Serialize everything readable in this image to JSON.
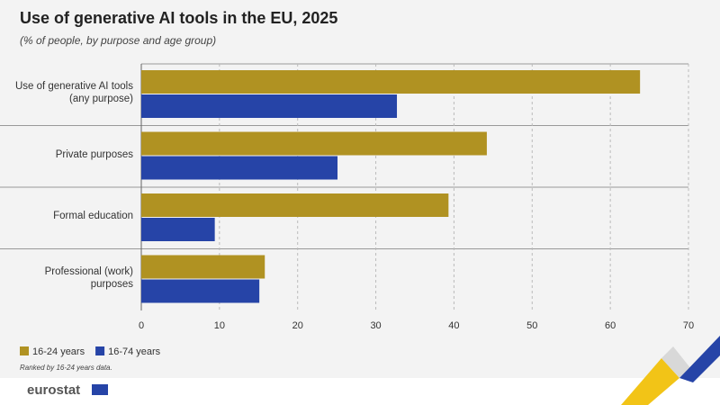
{
  "chart_data": {
    "type": "hbar",
    "title": "Use of generative AI tools in the EU, 2025",
    "subtitle": "(% of people, by purpose and age group)",
    "categories": [
      "Use of generative AI tools\n(any purpose)",
      "Private purposes",
      "Formal education",
      "Professional (work) purposes"
    ],
    "series": [
      {
        "name": "16-24 years",
        "color": "#b09222",
        "values": [
          63.8,
          44.2,
          39.3,
          15.8
        ]
      },
      {
        "name": "16-74 years",
        "color": "#2644a7",
        "values": [
          32.7,
          25.1,
          9.4,
          15.1
        ]
      }
    ],
    "xlim": [
      0,
      70
    ],
    "xticks": [
      0,
      10,
      20,
      30,
      40,
      50,
      60,
      70
    ],
    "grid": true,
    "legend": "bottom-left",
    "note": "Ranked by 16-24 years data.",
    "logo": "eurostat"
  }
}
